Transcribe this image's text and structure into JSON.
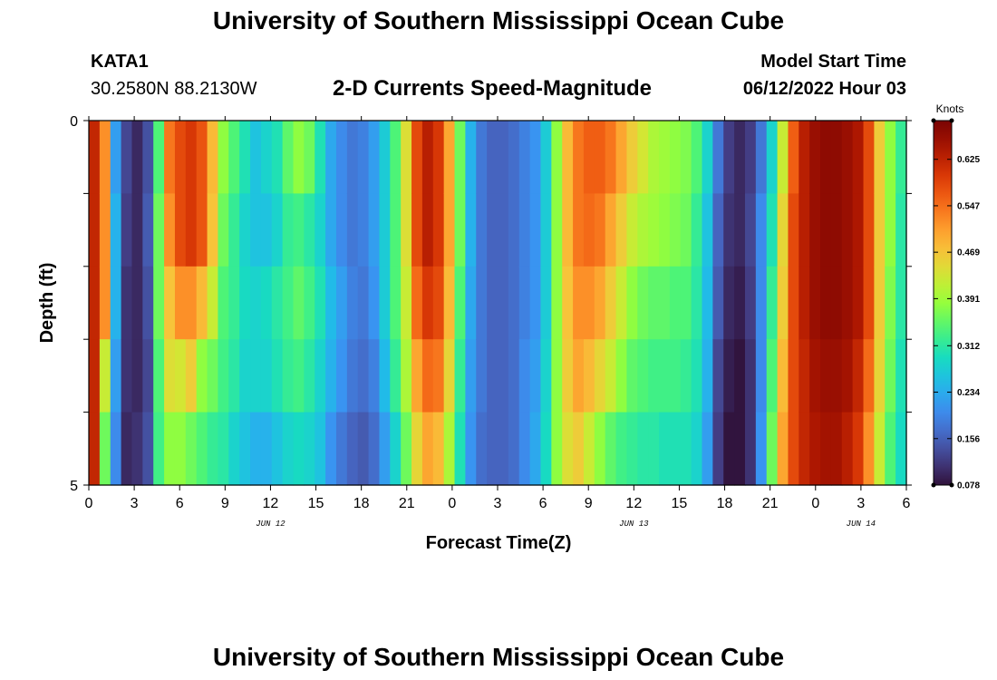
{
  "page": {
    "title": "University of Southern Mississippi Ocean Cube",
    "title_repeat": "University of Southern Mississippi Ocean Cube",
    "station": "KATA1",
    "coords": "30.2580N  88.2130W",
    "subtitle": "2-D Currents Speed-Magnitude",
    "model_label": "Model Start Time",
    "model_time": "06/12/2022 Hour 03"
  },
  "chart_data": {
    "type": "heatmap",
    "title": "2-D Currents Speed-Magnitude",
    "xlabel": "Forecast Time(Z)",
    "ylabel": "Depth (ft)",
    "colorbar_label": "Knots",
    "ylim": [
      0,
      5
    ],
    "y_ticks": [
      "0",
      "5"
    ],
    "x_hours": [
      0,
      54
    ],
    "x_ticks": [
      "0",
      "3",
      "6",
      "9",
      "12",
      "15",
      "18",
      "21",
      "0",
      "3",
      "6",
      "9",
      "12",
      "15",
      "18",
      "21",
      "0",
      "3",
      "6"
    ],
    "date_labels": [
      {
        "label": "JUN 12",
        "hour": 12
      },
      {
        "label": "JUN 13",
        "hour": 36
      },
      {
        "label": "JUN 14",
        "hour": 51
      }
    ],
    "colorbar_ticks": [
      "0.625",
      "0.547",
      "0.469",
      "0.391",
      "0.312",
      "0.234",
      "0.156",
      "0.078"
    ],
    "color_range": [
      0.078,
      0.69
    ],
    "depth_layers": 5,
    "values": [
      [
        0.62,
        0.62,
        0.62,
        0.62,
        0.62
      ],
      [
        0.52,
        0.52,
        0.52,
        0.42,
        0.36
      ],
      [
        0.22,
        0.24,
        0.24,
        0.22,
        0.2
      ],
      [
        0.13,
        0.12,
        0.11,
        0.11,
        0.1
      ],
      [
        0.1,
        0.1,
        0.1,
        0.1,
        0.11
      ],
      [
        0.14,
        0.15,
        0.14,
        0.13,
        0.14
      ],
      [
        0.34,
        0.36,
        0.36,
        0.34,
        0.33
      ],
      [
        0.54,
        0.52,
        0.47,
        0.44,
        0.38
      ],
      [
        0.58,
        0.58,
        0.52,
        0.43,
        0.38
      ],
      [
        0.6,
        0.6,
        0.52,
        0.46,
        0.36
      ],
      [
        0.57,
        0.57,
        0.48,
        0.38,
        0.34
      ],
      [
        0.48,
        0.47,
        0.42,
        0.36,
        0.32
      ],
      [
        0.38,
        0.36,
        0.34,
        0.33,
        0.31
      ],
      [
        0.34,
        0.32,
        0.32,
        0.31,
        0.28
      ],
      [
        0.3,
        0.28,
        0.29,
        0.28,
        0.26
      ],
      [
        0.26,
        0.26,
        0.28,
        0.28,
        0.24
      ],
      [
        0.28,
        0.26,
        0.29,
        0.28,
        0.24
      ],
      [
        0.3,
        0.28,
        0.31,
        0.3,
        0.26
      ],
      [
        0.35,
        0.32,
        0.33,
        0.32,
        0.28
      ],
      [
        0.38,
        0.33,
        0.35,
        0.33,
        0.29
      ],
      [
        0.36,
        0.31,
        0.33,
        0.31,
        0.28
      ],
      [
        0.3,
        0.28,
        0.3,
        0.28,
        0.26
      ],
      [
        0.23,
        0.23,
        0.25,
        0.24,
        0.21
      ],
      [
        0.2,
        0.2,
        0.22,
        0.21,
        0.18
      ],
      [
        0.18,
        0.18,
        0.19,
        0.18,
        0.16
      ],
      [
        0.19,
        0.19,
        0.18,
        0.17,
        0.15
      ],
      [
        0.22,
        0.22,
        0.21,
        0.19,
        0.17
      ],
      [
        0.27,
        0.27,
        0.27,
        0.25,
        0.22
      ],
      [
        0.34,
        0.34,
        0.34,
        0.32,
        0.28
      ],
      [
        0.44,
        0.44,
        0.42,
        0.4,
        0.36
      ],
      [
        0.58,
        0.58,
        0.55,
        0.5,
        0.45
      ],
      [
        0.63,
        0.63,
        0.6,
        0.55,
        0.5
      ],
      [
        0.6,
        0.6,
        0.58,
        0.54,
        0.48
      ],
      [
        0.5,
        0.5,
        0.48,
        0.45,
        0.4
      ],
      [
        0.36,
        0.36,
        0.34,
        0.32,
        0.3
      ],
      [
        0.24,
        0.24,
        0.23,
        0.22,
        0.21
      ],
      [
        0.18,
        0.18,
        0.18,
        0.18,
        0.17
      ],
      [
        0.16,
        0.16,
        0.16,
        0.16,
        0.16
      ],
      [
        0.16,
        0.16,
        0.16,
        0.16,
        0.16
      ],
      [
        0.17,
        0.17,
        0.17,
        0.17,
        0.17
      ],
      [
        0.19,
        0.19,
        0.19,
        0.2,
        0.2
      ],
      [
        0.21,
        0.21,
        0.21,
        0.22,
        0.23
      ],
      [
        0.27,
        0.27,
        0.27,
        0.28,
        0.29
      ],
      [
        0.38,
        0.38,
        0.38,
        0.38,
        0.38
      ],
      [
        0.48,
        0.48,
        0.47,
        0.46,
        0.44
      ],
      [
        0.54,
        0.54,
        0.52,
        0.5,
        0.46
      ],
      [
        0.56,
        0.55,
        0.52,
        0.48,
        0.42
      ],
      [
        0.56,
        0.54,
        0.5,
        0.45,
        0.38
      ],
      [
        0.54,
        0.5,
        0.46,
        0.42,
        0.35
      ],
      [
        0.5,
        0.46,
        0.42,
        0.38,
        0.33
      ],
      [
        0.46,
        0.42,
        0.38,
        0.35,
        0.32
      ],
      [
        0.43,
        0.4,
        0.36,
        0.34,
        0.31
      ],
      [
        0.4,
        0.39,
        0.35,
        0.33,
        0.31
      ],
      [
        0.39,
        0.38,
        0.35,
        0.33,
        0.3
      ],
      [
        0.38,
        0.37,
        0.34,
        0.33,
        0.3
      ],
      [
        0.37,
        0.36,
        0.34,
        0.32,
        0.3
      ],
      [
        0.34,
        0.32,
        0.31,
        0.3,
        0.28
      ],
      [
        0.28,
        0.26,
        0.25,
        0.24,
        0.22
      ],
      [
        0.18,
        0.16,
        0.15,
        0.13,
        0.12
      ],
      [
        0.12,
        0.11,
        0.1,
        0.09,
        0.08
      ],
      [
        0.1,
        0.1,
        0.09,
        0.08,
        0.08
      ],
      [
        0.12,
        0.13,
        0.12,
        0.11,
        0.11
      ],
      [
        0.18,
        0.2,
        0.2,
        0.2,
        0.21
      ],
      [
        0.28,
        0.3,
        0.32,
        0.34,
        0.36
      ],
      [
        0.42,
        0.45,
        0.46,
        0.48,
        0.5
      ],
      [
        0.56,
        0.58,
        0.58,
        0.58,
        0.58
      ],
      [
        0.63,
        0.63,
        0.63,
        0.62,
        0.62
      ],
      [
        0.66,
        0.66,
        0.66,
        0.65,
        0.64
      ],
      [
        0.67,
        0.67,
        0.67,
        0.66,
        0.65
      ],
      [
        0.67,
        0.67,
        0.67,
        0.66,
        0.65
      ],
      [
        0.66,
        0.66,
        0.66,
        0.65,
        0.63
      ],
      [
        0.64,
        0.64,
        0.64,
        0.62,
        0.6
      ],
      [
        0.58,
        0.58,
        0.58,
        0.55,
        0.52
      ],
      [
        0.46,
        0.46,
        0.46,
        0.45,
        0.42
      ],
      [
        0.38,
        0.38,
        0.37,
        0.36,
        0.34
      ],
      [
        0.32,
        0.31,
        0.31,
        0.3,
        0.29
      ]
    ]
  }
}
